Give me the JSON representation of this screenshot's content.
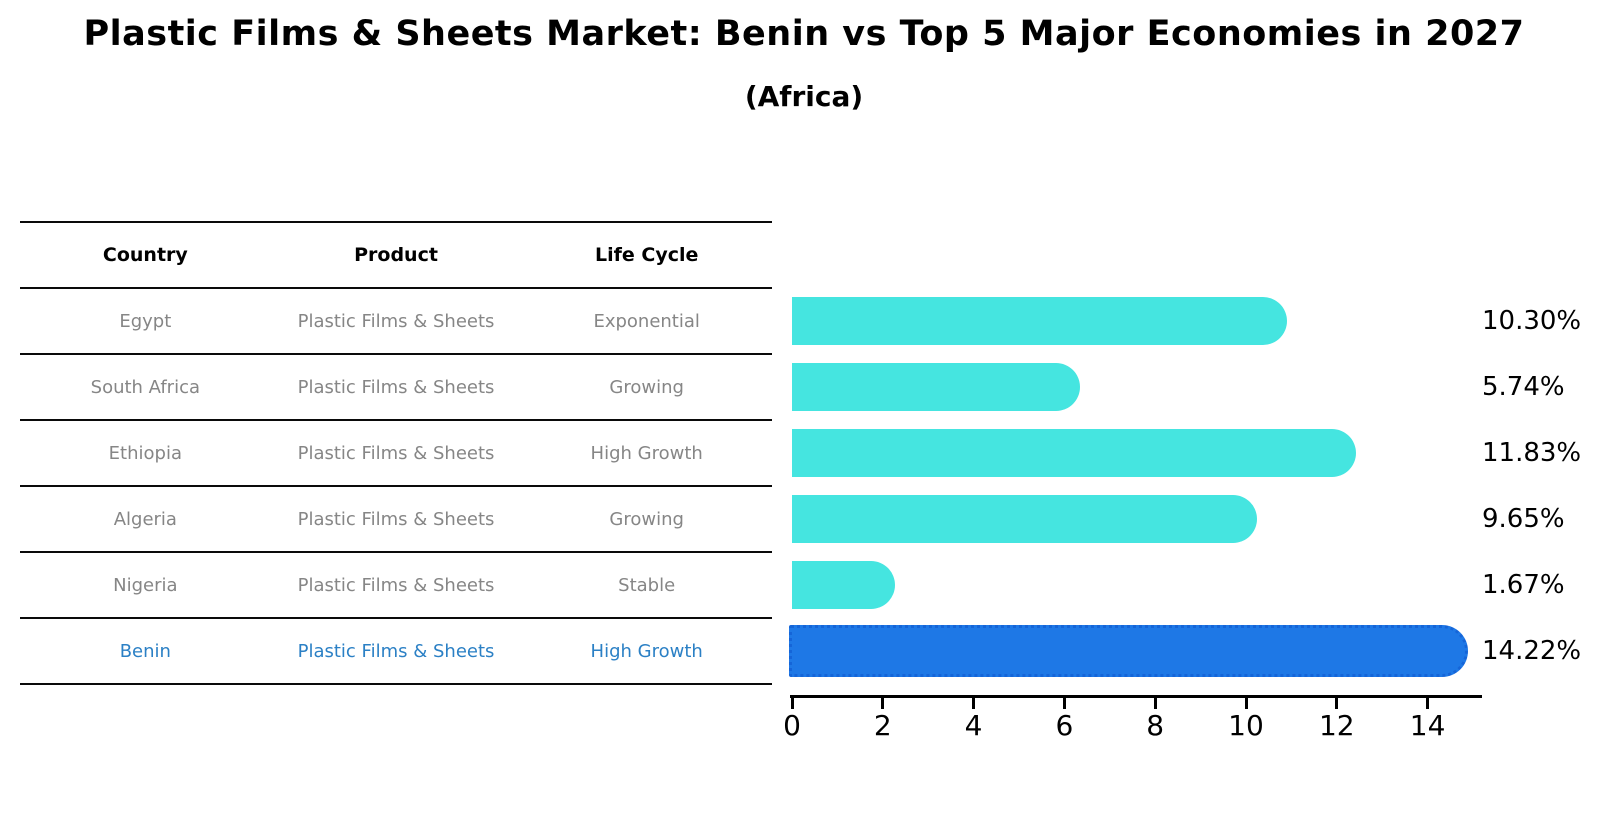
{
  "title": "Plastic Films & Sheets Market: Benin vs Top 5 Major Economies in 2027",
  "subtitle": "(Africa)",
  "table": {
    "headers": {
      "country": "Country",
      "product": "Product",
      "life_cycle": "Life Cycle"
    },
    "rows": [
      {
        "country": "Egypt",
        "product": "Plastic Films & Sheets",
        "life_cycle": "Exponential",
        "highlight": false
      },
      {
        "country": "South Africa",
        "product": "Plastic Films & Sheets",
        "life_cycle": "Growing",
        "highlight": false
      },
      {
        "country": "Ethiopia",
        "product": "Plastic Films & Sheets",
        "life_cycle": "High Growth",
        "highlight": false
      },
      {
        "country": "Algeria",
        "product": "Plastic Films & Sheets",
        "life_cycle": "Growing",
        "highlight": false
      },
      {
        "country": "Nigeria",
        "product": "Plastic Films & Sheets",
        "life_cycle": "Stable",
        "highlight": false
      },
      {
        "country": "Benin",
        "product": "Plastic Films & Sheets",
        "life_cycle": "High Growth",
        "highlight": true
      }
    ]
  },
  "chart_data": {
    "type": "bar",
    "orientation": "horizontal",
    "title": "Plastic Films & Sheets Market: Benin vs Top 5 Major Economies in 2027 (Africa)",
    "categories": [
      "Egypt",
      "South Africa",
      "Ethiopia",
      "Algeria",
      "Nigeria",
      "Benin"
    ],
    "values": [
      10.3,
      5.74,
      11.83,
      9.65,
      1.67,
      14.22
    ],
    "value_labels": [
      "10.30%",
      "5.74%",
      "11.83%",
      "9.65%",
      "1.67%",
      "14.22%"
    ],
    "unit": "%",
    "highlight_index": 5,
    "xticks": [
      0,
      2,
      4,
      6,
      8,
      10,
      12,
      14
    ],
    "xlim": [
      0,
      15.1
    ],
    "grid": false,
    "legend": "none",
    "colors": {
      "bar": "#45e5e0",
      "highlight_bar": "#1e78e6",
      "highlight_border": "#1565d8",
      "highlight_text": "#2b80c5",
      "row_text": "#868686",
      "axis": "#000000"
    }
  }
}
